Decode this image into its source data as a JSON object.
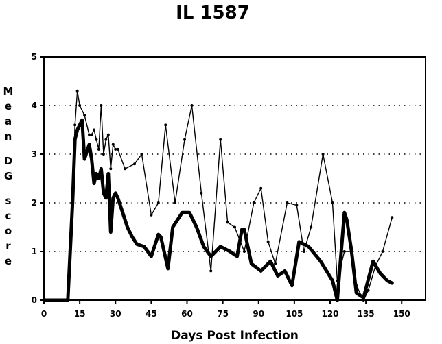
{
  "chart_data": {
    "type": "line",
    "title": "IL 1587",
    "xlabel": "Days Post Infection",
    "ylabel": "Mean DG score",
    "xlim": [
      0,
      160
    ],
    "ylim": [
      0,
      5
    ],
    "xticks": [
      0,
      15,
      30,
      45,
      60,
      75,
      90,
      105,
      120,
      135,
      150
    ],
    "yticks": [
      0,
      1,
      2,
      3,
      4,
      5
    ],
    "grid": "horizontal dotted",
    "legend": "none",
    "series": [
      {
        "style": "thick",
        "color": "#000000",
        "points": [
          [
            0,
            0
          ],
          [
            10,
            0
          ],
          [
            12,
            2
          ],
          [
            13,
            3.3
          ],
          [
            14,
            3.5
          ],
          [
            15,
            3.6
          ],
          [
            16,
            3.7
          ],
          [
            17,
            2.9
          ],
          [
            19,
            3.2
          ],
          [
            20,
            2.9
          ],
          [
            21,
            2.4
          ],
          [
            22,
            2.6
          ],
          [
            23,
            2.5
          ],
          [
            24,
            2.7
          ],
          [
            25,
            2.2
          ],
          [
            26,
            2.1
          ],
          [
            27,
            2.6
          ],
          [
            28,
            1.4
          ],
          [
            29,
            2.1
          ],
          [
            30,
            2.2
          ],
          [
            31,
            2.1
          ],
          [
            33,
            1.8
          ],
          [
            35,
            1.5
          ],
          [
            37,
            1.3
          ],
          [
            39,
            1.15
          ],
          [
            42,
            1.1
          ],
          [
            45,
            0.9
          ],
          [
            48,
            1.35
          ],
          [
            49,
            1.3
          ],
          [
            52,
            0.65
          ],
          [
            54,
            1.5
          ],
          [
            58,
            1.8
          ],
          [
            61,
            1.8
          ],
          [
            64,
            1.5
          ],
          [
            67,
            1.1
          ],
          [
            70,
            0.9
          ],
          [
            74,
            1.1
          ],
          [
            78,
            1.0
          ],
          [
            81,
            0.9
          ],
          [
            83,
            1.45
          ],
          [
            84,
            1.45
          ],
          [
            87,
            0.75
          ],
          [
            91,
            0.6
          ],
          [
            95,
            0.8
          ],
          [
            98,
            0.5
          ],
          [
            101,
            0.6
          ],
          [
            104,
            0.3
          ],
          [
            107,
            1.2
          ],
          [
            111,
            1.1
          ],
          [
            116,
            0.8
          ],
          [
            121,
            0.4
          ],
          [
            123,
            0.0
          ],
          [
            126,
            1.8
          ],
          [
            127,
            1.65
          ],
          [
            129,
            1.0
          ],
          [
            131,
            0.15
          ],
          [
            134,
            0.05
          ],
          [
            138,
            0.8
          ],
          [
            141,
            0.55
          ],
          [
            144,
            0.4
          ],
          [
            146,
            0.35
          ]
        ]
      },
      {
        "style": "thin-marked",
        "color": "#000000",
        "points": [
          [
            0,
            0
          ],
          [
            10,
            0
          ],
          [
            12,
            2.2
          ],
          [
            13,
            3.6
          ],
          [
            14,
            4.3
          ],
          [
            15,
            4.0
          ],
          [
            17,
            3.8
          ],
          [
            19,
            3.4
          ],
          [
            20,
            3.4
          ],
          [
            21,
            3.5
          ],
          [
            22,
            3.3
          ],
          [
            23,
            3.1
          ],
          [
            24,
            4.0
          ],
          [
            25,
            3.0
          ],
          [
            26,
            3.3
          ],
          [
            27,
            3.4
          ],
          [
            28,
            2.7
          ],
          [
            29,
            3.2
          ],
          [
            30,
            3.1
          ],
          [
            31,
            3.1
          ],
          [
            34,
            2.7
          ],
          [
            38,
            2.8
          ],
          [
            41,
            3.0
          ],
          [
            45,
            1.75
          ],
          [
            48,
            2.0
          ],
          [
            51,
            3.6
          ],
          [
            55,
            2.0
          ],
          [
            59,
            3.3
          ],
          [
            62,
            4.0
          ],
          [
            66,
            2.2
          ],
          [
            70,
            0.6
          ],
          [
            74,
            3.3
          ],
          [
            77,
            1.6
          ],
          [
            80,
            1.5
          ],
          [
            84,
            1.0
          ],
          [
            88,
            2.0
          ],
          [
            91,
            2.3
          ],
          [
            94,
            1.2
          ],
          [
            97,
            0.75
          ],
          [
            102,
            2.0
          ],
          [
            106,
            1.95
          ],
          [
            109,
            1.0
          ],
          [
            112,
            1.5
          ],
          [
            117,
            3.0
          ],
          [
            121,
            2.0
          ],
          [
            123,
            0.4
          ],
          [
            126,
            1.0
          ],
          [
            129,
            1.0
          ],
          [
            131,
            0.3
          ],
          [
            134,
            0.0
          ],
          [
            136,
            0.2
          ],
          [
            139,
            0.7
          ],
          [
            142,
            1.0
          ],
          [
            146,
            1.7
          ]
        ]
      }
    ]
  }
}
